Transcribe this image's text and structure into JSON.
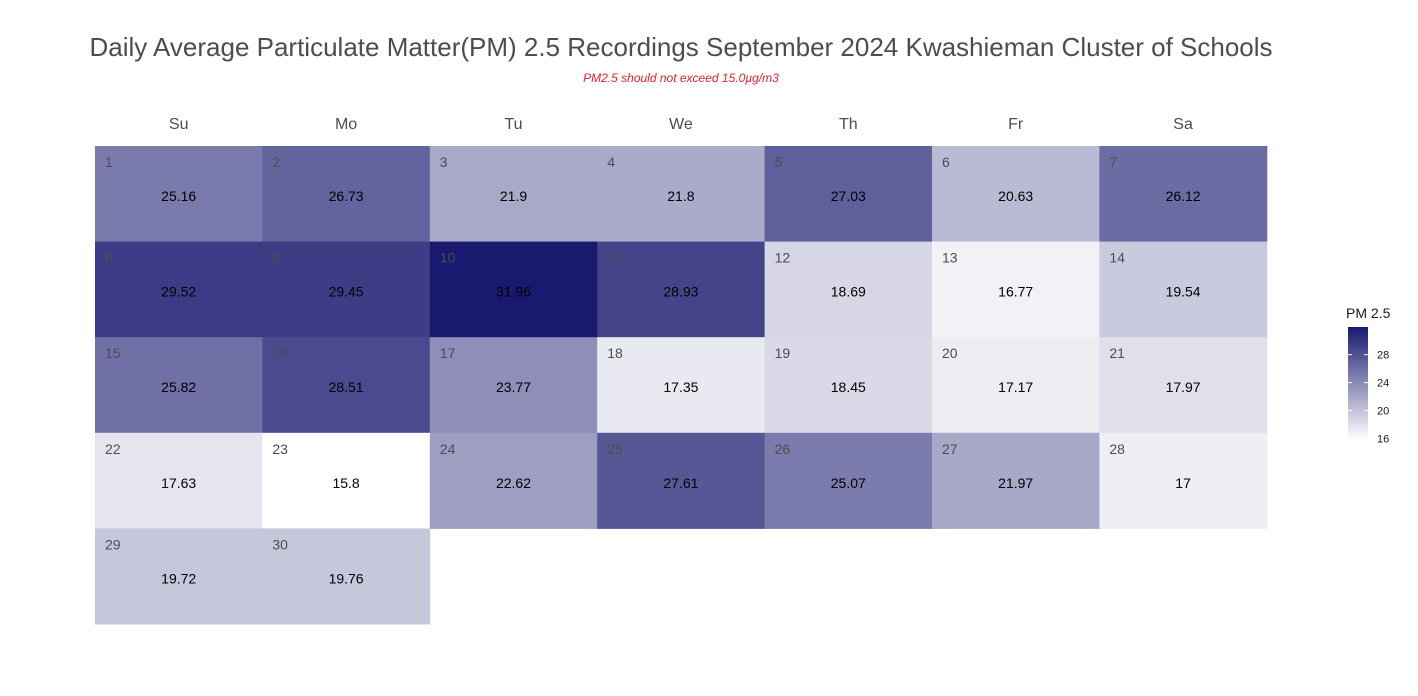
{
  "chart_data": {
    "type": "heatmap",
    "title": "Daily Average Particulate Matter(PM) 2.5 Recordings September 2024 Kwashieman Cluster of Schools",
    "subtitle": "PM2.5 should not exceed 15.0µg/m3",
    "weekdays": [
      "Su",
      "Mo",
      "Tu",
      "We",
      "Th",
      "Fr",
      "Sa"
    ],
    "first_weekday_index": 0,
    "days": [
      1,
      2,
      3,
      4,
      5,
      6,
      7,
      8,
      9,
      10,
      11,
      12,
      13,
      14,
      15,
      16,
      17,
      18,
      19,
      20,
      21,
      22,
      23,
      24,
      25,
      26,
      27,
      28,
      29,
      30
    ],
    "values": [
      25.16,
      26.73,
      21.9,
      21.8,
      27.03,
      20.63,
      26.12,
      29.52,
      29.45,
      31.96,
      28.93,
      18.69,
      16.77,
      19.54,
      25.82,
      28.51,
      23.77,
      17.35,
      18.45,
      17.17,
      17.97,
      17.63,
      15.8,
      22.62,
      27.61,
      25.07,
      21.97,
      17,
      19.72,
      19.76
    ],
    "value_labels": [
      "25.16",
      "26.73",
      "21.9",
      "21.8",
      "27.03",
      "20.63",
      "26.12",
      "29.52",
      "29.45",
      "31.96",
      "28.93",
      "18.69",
      "16.77",
      "19.54",
      "25.82",
      "28.51",
      "23.77",
      "17.35",
      "18.45",
      "17.17",
      "17.97",
      "17.63",
      "15.8",
      "22.62",
      "27.61",
      "25.07",
      "21.97",
      "17",
      "19.72",
      "19.76"
    ],
    "color_scale": {
      "low": "#ffffff",
      "high": "#191970",
      "min": 15.8,
      "max": 31.96
    },
    "legend": {
      "title": "PM 2.5",
      "ticks": [
        16,
        20,
        24,
        28
      ],
      "tick_labels": [
        "16",
        "20",
        "24",
        "28"
      ],
      "position": "right"
    }
  }
}
